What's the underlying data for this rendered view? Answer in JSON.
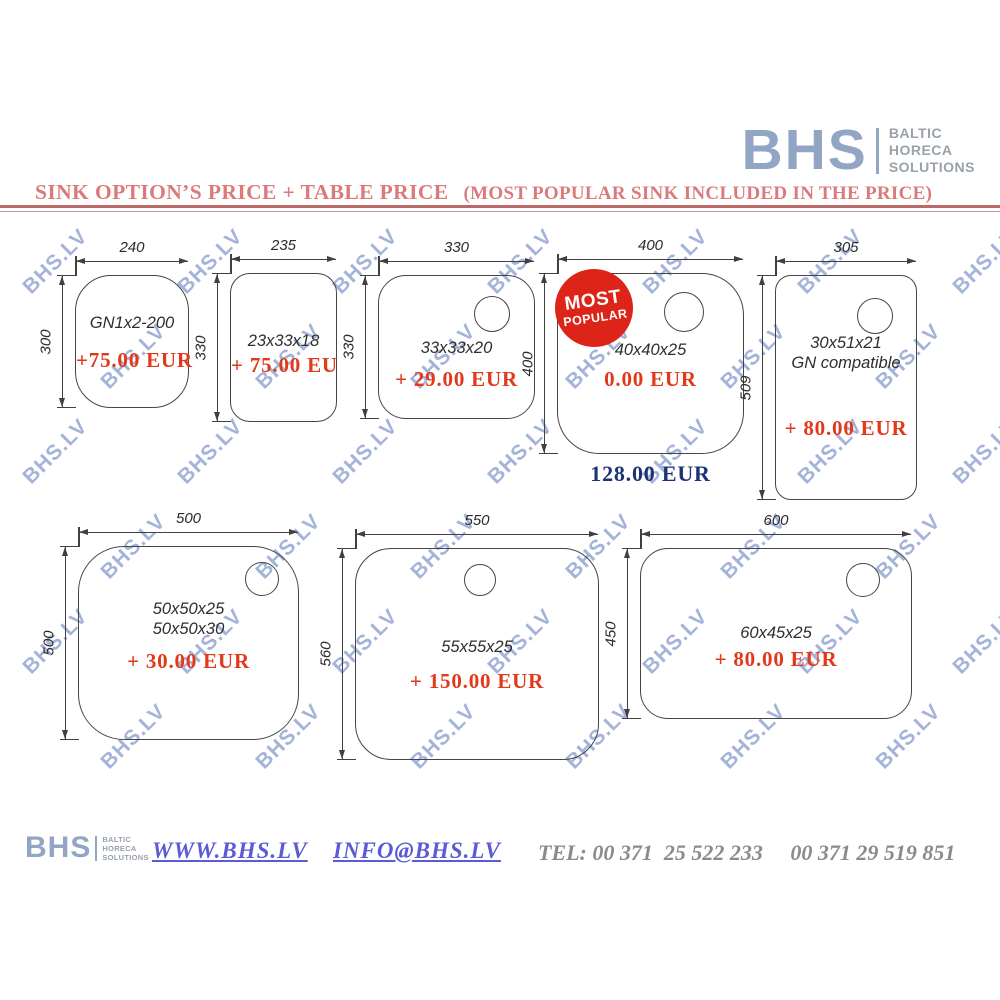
{
  "header": {
    "brand": {
      "name": "BHS",
      "tagline": [
        "BALTIC",
        "HORECA",
        "SOLUTIONS"
      ]
    },
    "title_main": "SINK OPTION’S PRICE + TABLE PRICE",
    "title_note": "(MOST POPULAR SINK INCLUDED IN THE PRICE)"
  },
  "watermark": {
    "text": "BHS.LV"
  },
  "sinks": [
    {
      "top_dim": "240",
      "side_dim": "300",
      "labels": [
        "GN1x2-200"
      ],
      "price": "+75.00 EUR"
    },
    {
      "top_dim": "235",
      "side_dim": "330",
      "labels": [
        "23x33x18"
      ],
      "price": "+ 75.00 EU"
    },
    {
      "top_dim": "330",
      "side_dim": "330",
      "labels": [
        "33x33x20"
      ],
      "price": "+ 29.00 EUR"
    },
    {
      "top_dim": "400",
      "side_dim": "400",
      "labels": [
        "40x40x25"
      ],
      "price": "0.00 EUR",
      "under_price": "128.00 EUR",
      "badge": [
        "MOST",
        "POPULAR"
      ]
    },
    {
      "top_dim": "305",
      "side_dim": "509",
      "labels": [
        "30x51x21",
        "GN compatible"
      ],
      "price": "+ 80.00 EUR"
    },
    {
      "top_dim": "500",
      "side_dim": "500",
      "labels": [
        "50x50x25",
        "50x50x30"
      ],
      "price": "+ 30.00 EUR"
    },
    {
      "top_dim": "550",
      "side_dim": "560",
      "labels": [
        "55x55x25"
      ],
      "price": "+ 150.00 EUR"
    },
    {
      "top_dim": "600",
      "side_dim": "450",
      "labels": [
        "60x45x25"
      ],
      "price": "+ 80.00 EUR"
    }
  ],
  "footer": {
    "brand": {
      "name": "BHS",
      "tagline": [
        "BALTIC",
        "HORECA",
        "SOLUTIONS"
      ]
    },
    "website": "WWW.BHS.LV",
    "email": "INFO@BHS.LV",
    "tel": "TEL: 00 371  25 522 233     00 371 29 519 851"
  },
  "colors": {
    "price_red": "#e2391b",
    "total_navy": "#1c3377",
    "title_red": "#db7a7a",
    "logo_blue": "#93a5c5",
    "badge_red": "#dd2418",
    "watermark_blue": "#a3b3da",
    "link_blue": "#5b5bd6",
    "tel_gray": "#8b8b8b"
  }
}
